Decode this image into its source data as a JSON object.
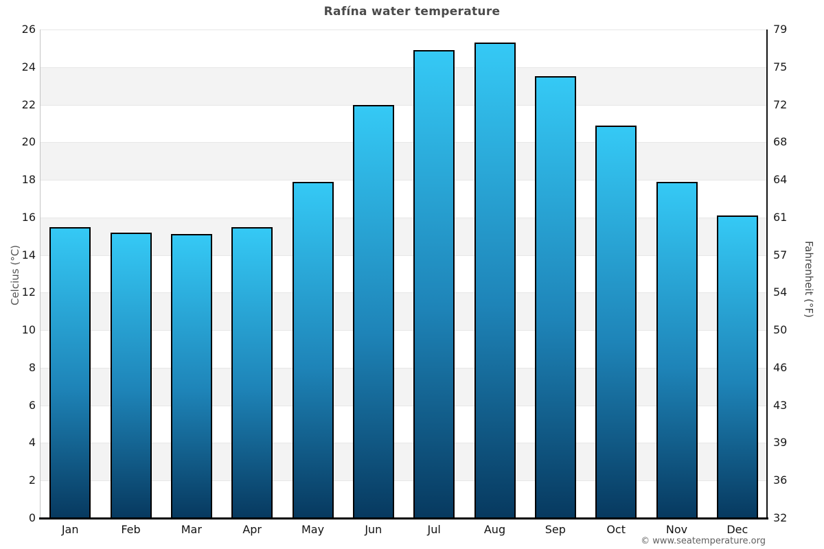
{
  "page": {
    "title": "Rafína water temperature"
  },
  "chart_data": {
    "type": "bar",
    "title": "Rafína water temperature",
    "categories": [
      "Jan",
      "Feb",
      "Mar",
      "Apr",
      "May",
      "Jun",
      "Jul",
      "Aug",
      "Sep",
      "Oct",
      "Nov",
      "Dec"
    ],
    "values": [
      15.5,
      15.2,
      15.1,
      15.5,
      17.9,
      22.0,
      24.9,
      25.3,
      23.5,
      20.9,
      17.9,
      16.1
    ],
    "ylabel_left": "Celcius (°C)",
    "ylabel_right": "Fahrenheit (°F)",
    "ylim": [
      0,
      26
    ],
    "celsius_ticks": [
      0,
      2,
      4,
      6,
      8,
      10,
      12,
      14,
      16,
      18,
      20,
      22,
      24,
      26
    ],
    "fahrenheit_ticks": [
      "32",
      "36",
      "39",
      "43",
      "46",
      "50",
      "54",
      "57",
      "61",
      "64",
      "68",
      "72",
      "75",
      "79"
    ],
    "grid": "banded",
    "legend": "none",
    "band_colors": [
      "#ffffff",
      "#f3f3f3"
    ],
    "bar_gradient_top": "#35c9f5",
    "bar_gradient_bottom": "#07395f",
    "bar_border_color": "#000000"
  },
  "footer": {
    "copyright": "© www.seatemperature.org"
  }
}
